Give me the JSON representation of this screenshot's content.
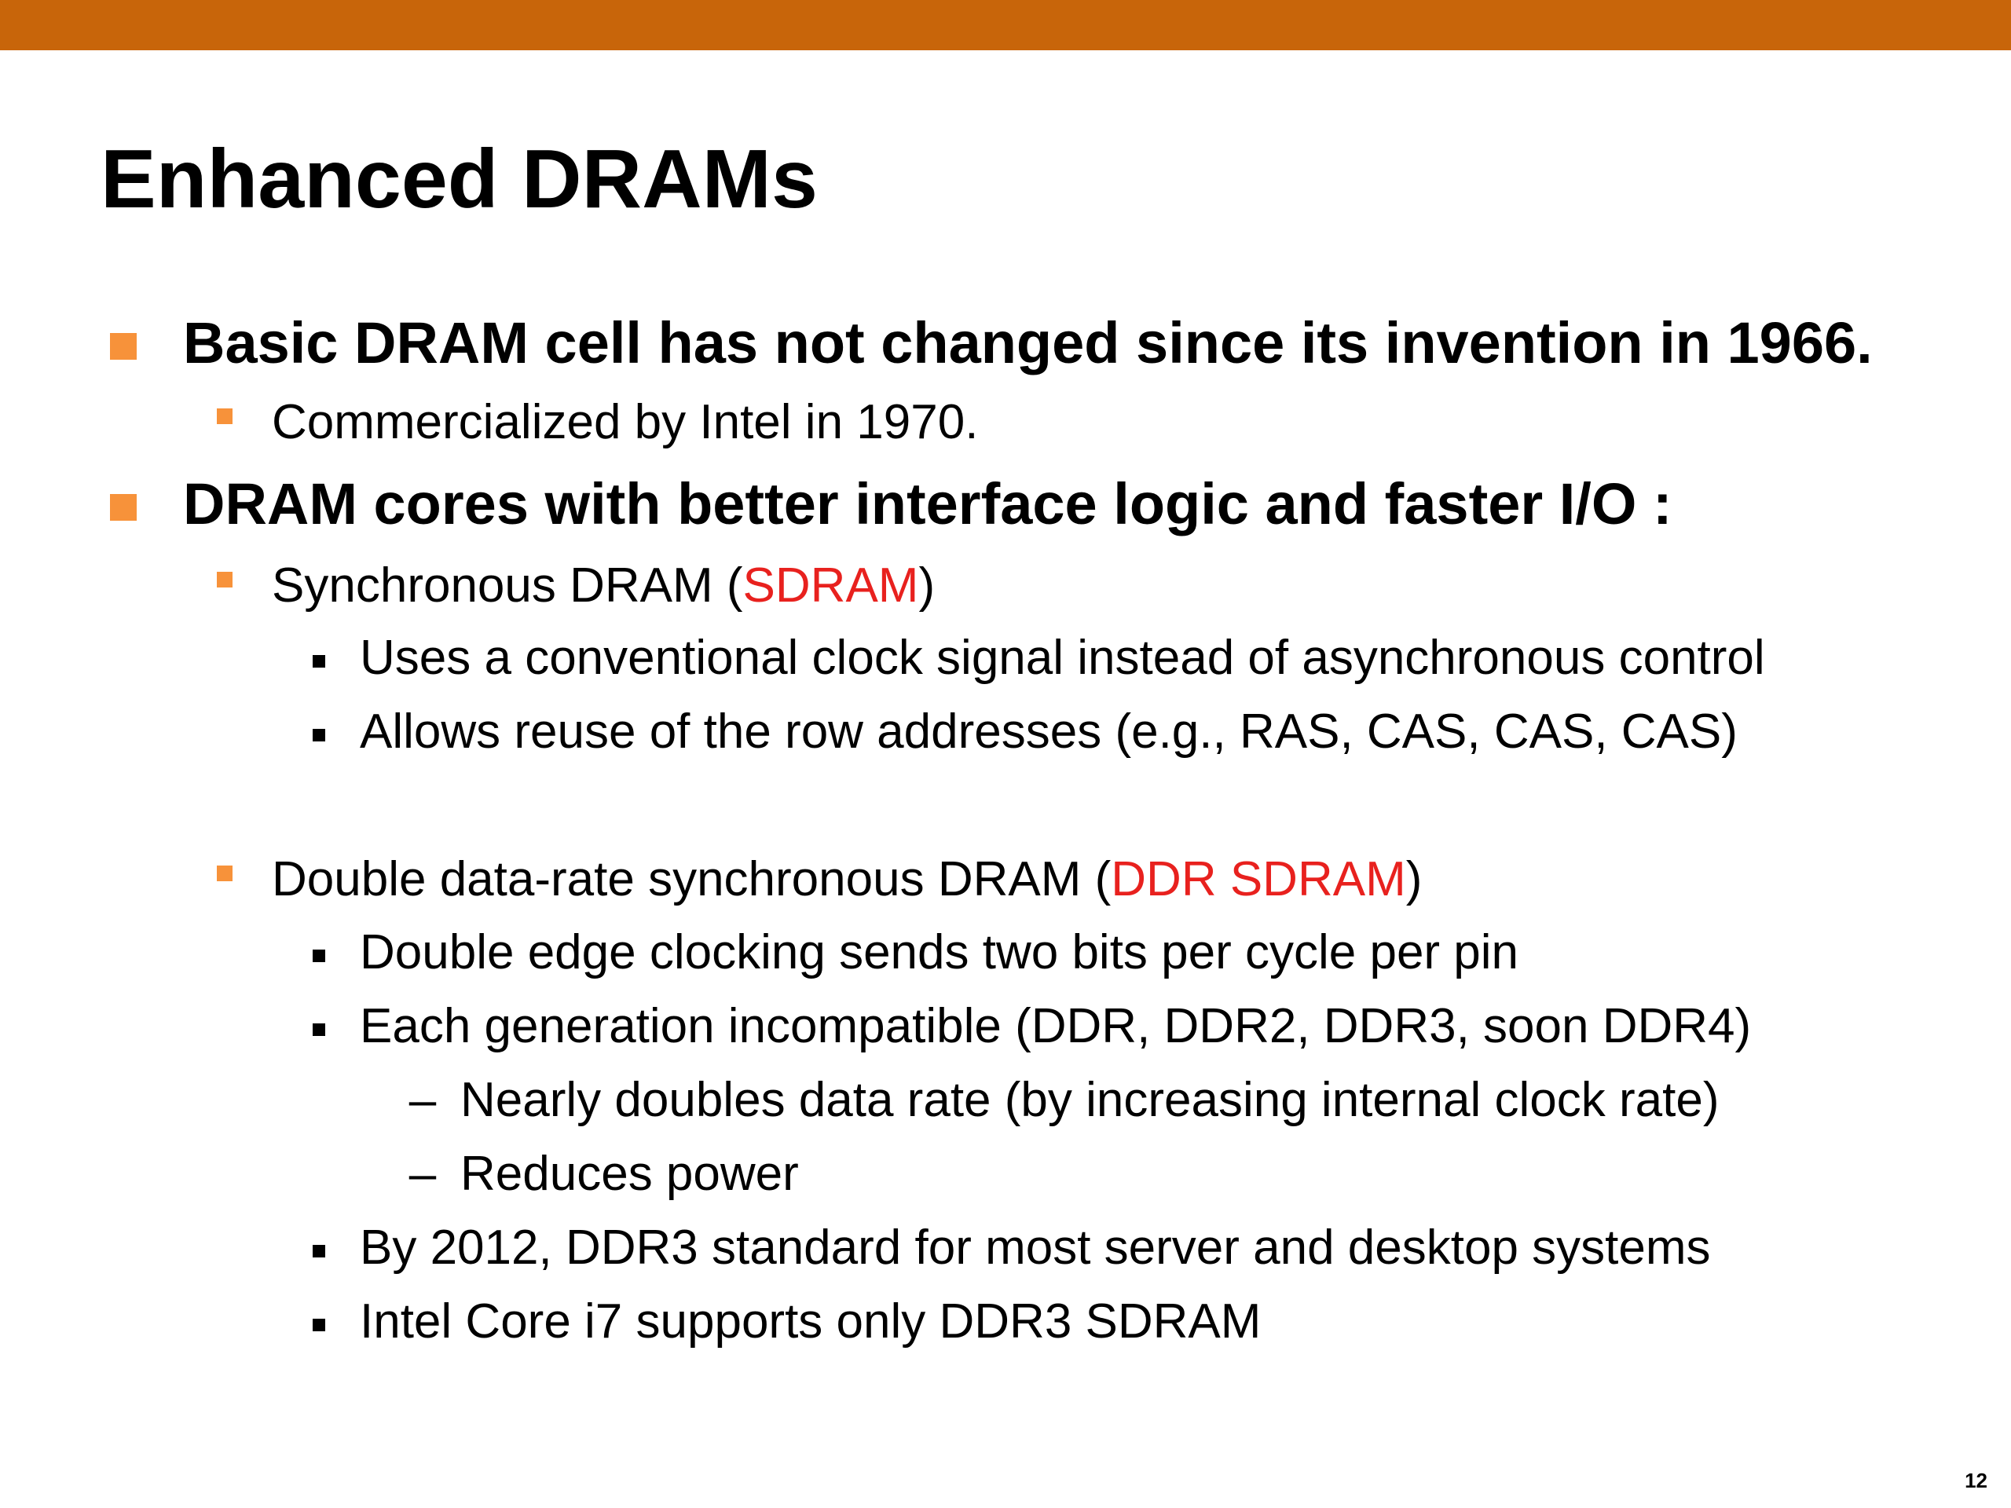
{
  "slide": {
    "title": "Enhanced DRAMs",
    "page_number": "12",
    "accent_color": "#c8650a",
    "bullet_color": "#f7923a",
    "highlight_color": "#e8211e"
  },
  "bullets": {
    "b1": "Basic DRAM cell has not changed since its invention in 1966.",
    "b1_1": "Commercialized by Intel in 1970.",
    "b2": "DRAM cores with better interface logic and faster I/O :",
    "b2_1": {
      "pre": "Synchronous DRAM (",
      "highlight": "SDRAM",
      "post": ")"
    },
    "b2_1_1": "Uses a conventional clock signal instead of asynchronous control",
    "b2_1_2": "Allows reuse of the row addresses (e.g., RAS, CAS, CAS, CAS)",
    "b2_2": {
      "pre": "Double data-rate synchronous DRAM (",
      "highlight": "DDR SDRAM",
      "post": ")"
    },
    "b2_2_1": "Double edge clocking sends two bits per cycle per pin",
    "b2_2_2": "Each generation incompatible (DDR, DDR2, DDR3, soon DDR4)",
    "b2_2_2_1": "Nearly doubles data rate (by increasing internal clock rate)",
    "b2_2_2_2": "Reduces power",
    "b2_2_3": "By 2012, DDR3 standard for most server and desktop systems",
    "b2_2_4": "Intel Core i7 supports only DDR3 SDRAM",
    "dash": "–"
  }
}
